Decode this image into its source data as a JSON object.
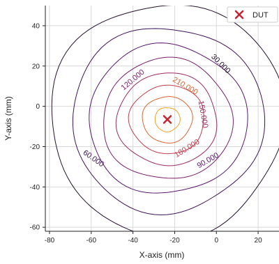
{
  "chart_data": {
    "type": "contour",
    "xlabel": "X-axis (mm)",
    "ylabel": "Y-axis (mm)",
    "xlim": [
      -82,
      30
    ],
    "ylim": [
      -62,
      50
    ],
    "x_ticks": [
      -80,
      -60,
      -40,
      -20,
      0,
      20
    ],
    "y_ticks": [
      40,
      20,
      0,
      -20,
      -40,
      -60
    ],
    "grid": true,
    "legend": {
      "placement": "top-right",
      "entries": [
        {
          "label": "DUT",
          "marker": "x",
          "color": "#c8232f"
        }
      ]
    },
    "center": [
      -23.5,
      -6.5
    ],
    "dut_marker": {
      "x": -23.5,
      "y": -6.5,
      "label": "DUT",
      "color": "#c8232f"
    },
    "levels": [
      {
        "value": 30,
        "label": "30.000",
        "color": "#24102e",
        "rx": 56,
        "ry": 58
      },
      {
        "value": 60,
        "label": "60.000",
        "color": "#3e1257",
        "rx": 46,
        "ry": 46
      },
      {
        "value": 90,
        "label": "90.000",
        "color": "#59176e",
        "rx": 38,
        "ry": 37
      },
      {
        "value": 120,
        "label": "120.000",
        "color": "#7a1f6a",
        "rx": 31,
        "ry": 30
      },
      {
        "value": 150,
        "label": "150.000",
        "color": "#9e2960",
        "rx": 24,
        "ry": 23
      },
      {
        "value": 180,
        "label": "180.000",
        "color": "#c33a4a",
        "rx": 18,
        "ry": 17
      },
      {
        "value": 210,
        "label": "210.000",
        "color": "#e0622e",
        "rx": 12,
        "ry": 11.5
      },
      {
        "value": 240,
        "label": "",
        "color": "#f4a020",
        "rx": 6,
        "ry": 6
      }
    ],
    "contour_labels": [
      {
        "text": "30.000",
        "x": 2,
        "y": 21,
        "rotation": 45,
        "color": "#24102e"
      },
      {
        "text": "120.000",
        "x": -40,
        "y": 13,
        "rotation": -40,
        "color": "#7a1f6a"
      },
      {
        "text": "210.000",
        "x": -15,
        "y": 10,
        "rotation": 30,
        "color": "#e0622e"
      },
      {
        "text": "150.000",
        "x": -6.5,
        "y": -4,
        "rotation": 80,
        "color": "#9e2960"
      },
      {
        "text": "180.000",
        "x": -14,
        "y": -21,
        "rotation": -32,
        "color": "#c33a4a"
      },
      {
        "text": "90.000",
        "x": -4,
        "y": -27,
        "rotation": -30,
        "color": "#59176e"
      },
      {
        "text": "60.000",
        "x": -59,
        "y": -26,
        "rotation": 35,
        "color": "#3e1257"
      }
    ]
  }
}
